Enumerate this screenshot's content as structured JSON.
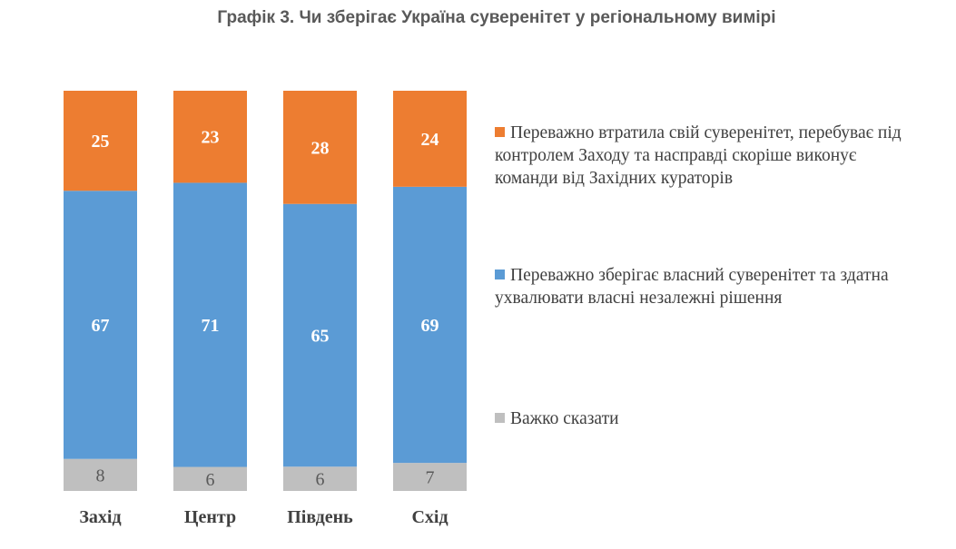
{
  "title": "Графік 3. Чи зберігає Україна суверенітет у регіональному вимірі",
  "chart_data": {
    "type": "bar",
    "stacked": true,
    "percent_stacked": true,
    "categories": [
      "Захід",
      "Центр",
      "Південь",
      "Схід"
    ],
    "series": [
      {
        "name": "Важко сказати",
        "values": [
          8,
          6,
          6,
          7
        ],
        "color": "#bfbfbf",
        "label_color": "#595959"
      },
      {
        "name": "Переважно зберігає власний суверенітет та здатна ухвалювати власні незалежні рішення",
        "values": [
          67,
          71,
          65,
          69
        ],
        "color": "#5b9bd5",
        "label_color": "#ffffff"
      },
      {
        "name": "Переважно втратила свій суверенітет, перебуває під контролем Заходу та насправді скоріше виконує команди від Західних кураторів",
        "values": [
          25,
          23,
          28,
          24
        ],
        "color": "#ed7d31",
        "label_color": "#ffffff"
      }
    ],
    "legend_position": "right",
    "legend_order": [
      2,
      1,
      0
    ],
    "grid": false,
    "y_axis_visible": false
  }
}
